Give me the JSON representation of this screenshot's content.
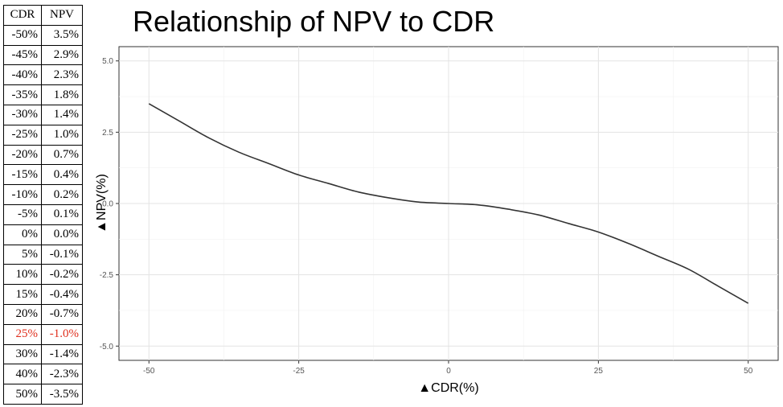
{
  "table": {
    "headers": [
      "CDR",
      "NPV"
    ],
    "highlight_color": "#e0301e",
    "rows": [
      {
        "cdr": "-50%",
        "npv": "3.5%"
      },
      {
        "cdr": "-45%",
        "npv": "2.9%"
      },
      {
        "cdr": "-40%",
        "npv": "2.3%"
      },
      {
        "cdr": "-35%",
        "npv": "1.8%"
      },
      {
        "cdr": "-30%",
        "npv": "1.4%"
      },
      {
        "cdr": "-25%",
        "npv": "1.0%"
      },
      {
        "cdr": "-20%",
        "npv": "0.7%"
      },
      {
        "cdr": "-15%",
        "npv": "0.4%"
      },
      {
        "cdr": "-10%",
        "npv": "0.2%"
      },
      {
        "cdr": "-5%",
        "npv": "0.1%"
      },
      {
        "cdr": "0%",
        "npv": "0.0%"
      },
      {
        "cdr": "5%",
        "npv": "-0.1%"
      },
      {
        "cdr": "10%",
        "npv": "-0.2%"
      },
      {
        "cdr": "15%",
        "npv": "-0.4%"
      },
      {
        "cdr": "20%",
        "npv": "-0.7%"
      },
      {
        "cdr": "25%",
        "npv": "-1.0%",
        "highlight": true
      },
      {
        "cdr": "30%",
        "npv": "-1.4%"
      },
      {
        "cdr": "40%",
        "npv": "-2.3%"
      },
      {
        "cdr": "50%",
        "npv": "-3.5%"
      }
    ]
  },
  "chart_data": {
    "type": "line",
    "title": "Relationship of NPV to CDR",
    "xlabel": "▲CDR(%)",
    "ylabel": "▲NPV(%)",
    "xlim": [
      -55,
      55
    ],
    "ylim": [
      -5.5,
      5.5
    ],
    "x_ticks": [
      -50,
      -25,
      0,
      25,
      50
    ],
    "x_tick_labels": [
      "-50",
      "-25",
      "0",
      "25",
      "50"
    ],
    "y_ticks": [
      -5,
      -2.5,
      0,
      2.5,
      5
    ],
    "y_tick_labels": [
      "-5.0",
      "-2.5",
      "0.0",
      "2.5",
      "5.0"
    ],
    "grid": true,
    "line_color": "#333333",
    "series": [
      {
        "x": [
          -50,
          -45,
          -40,
          -35,
          -30,
          -25,
          -20,
          -15,
          -10,
          -5,
          0,
          5,
          10,
          15,
          20,
          25,
          30,
          35,
          40,
          45,
          50
        ],
        "y": [
          3.5,
          2.9,
          2.3,
          1.8,
          1.4,
          1.0,
          0.7,
          0.4,
          0.2,
          0.05,
          0.0,
          -0.05,
          -0.2,
          -0.4,
          -0.7,
          -1.0,
          -1.4,
          -1.85,
          -2.3,
          -2.9,
          -3.5
        ]
      }
    ]
  }
}
